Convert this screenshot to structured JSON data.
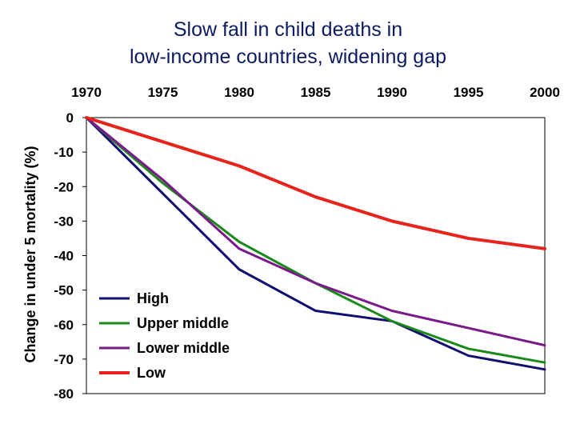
{
  "chart_data": {
    "type": "line",
    "title_line1": "Slow fall in child deaths in",
    "title_line2": "low-income countries, widening gap",
    "xlabel": "",
    "ylabel": "Change in under 5 mortality (%)",
    "x": [
      1970,
      1975,
      1980,
      1985,
      1990,
      1995,
      2000
    ],
    "x_tick_labels": [
      "1970",
      "1975",
      "1980",
      "1985",
      "1990",
      "1995",
      "2000"
    ],
    "x_axis_position": "top",
    "y_ticks": [
      0,
      -10,
      -20,
      -30,
      -40,
      -50,
      -60,
      -70,
      -80
    ],
    "y_tick_labels": [
      "0",
      "-10",
      "-20",
      "-30",
      "-40",
      "-50",
      "-60",
      "-70",
      "-80"
    ],
    "xlim": [
      1970,
      2000
    ],
    "ylim": [
      -80,
      0
    ],
    "grid": false,
    "legend_position": "bottom-left",
    "series": [
      {
        "name": "High",
        "color": "#101070",
        "values": [
          0,
          -22,
          -44,
          -56,
          -59,
          -69,
          -73
        ]
      },
      {
        "name": "Upper middle",
        "color": "#1b8a1b",
        "values": [
          0,
          -19,
          -36,
          -48,
          -59,
          -67,
          -71
        ]
      },
      {
        "name": "Lower middle",
        "color": "#7a1a8a",
        "values": [
          0,
          -18,
          -38,
          -48,
          -56,
          -61,
          -66
        ]
      },
      {
        "name": "Low",
        "color": "#e8231c",
        "values": [
          0,
          -7,
          -14,
          -23,
          -30,
          -35,
          -38
        ]
      }
    ]
  }
}
